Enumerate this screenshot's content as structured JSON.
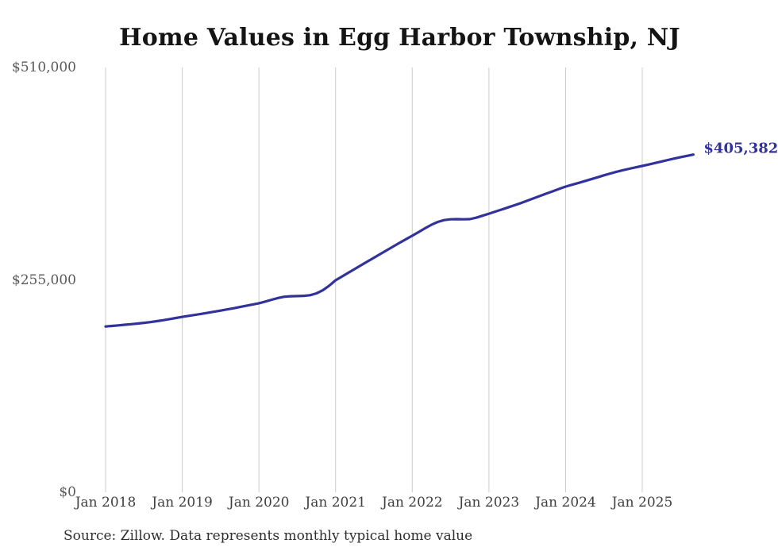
{
  "header": {
    "title": "Home Values in Egg Harbor Township, NJ"
  },
  "footer": {
    "source": "Source: Zillow. Data represents monthly typical home value"
  },
  "colors": {
    "line": "#32329d",
    "grid": "#cccccc",
    "title_text": "#141414",
    "axis_text": "#404040",
    "ytick_text": "#595959",
    "background": "#ffffff"
  },
  "chart_data": {
    "type": "line",
    "title": "Home Values in Egg Harbor Township, NJ",
    "xlabel": "",
    "ylabel": "",
    "unit": "USD",
    "ylim": [
      0,
      510000
    ],
    "grid": "vertical-only",
    "legend_position": "none",
    "end_label": "$405,382",
    "final_value": 405382,
    "y_ticks": [
      {
        "label": "$0",
        "value": 0
      },
      {
        "label": "$255,000",
        "value": 255000
      },
      {
        "label": "$510,000",
        "value": 510000
      }
    ],
    "x_ticks": [
      {
        "label": "Jan 2018",
        "month": 0
      },
      {
        "label": "Jan 2019",
        "month": 12
      },
      {
        "label": "Jan 2020",
        "month": 24
      },
      {
        "label": "Jan 2021",
        "month": 36
      },
      {
        "label": "Jan 2022",
        "month": 48
      },
      {
        "label": "Jan 2023",
        "month": 60
      },
      {
        "label": "Jan 2024",
        "month": 72
      },
      {
        "label": "Jan 2025",
        "month": 84
      }
    ],
    "months": [
      "2018-01",
      "2018-02",
      "2018-03",
      "2018-04",
      "2018-05",
      "2018-06",
      "2018-07",
      "2018-08",
      "2018-09",
      "2018-10",
      "2018-11",
      "2018-12",
      "2019-01",
      "2019-02",
      "2019-03",
      "2019-04",
      "2019-05",
      "2019-06",
      "2019-07",
      "2019-08",
      "2019-09",
      "2019-10",
      "2019-11",
      "2019-12",
      "2020-01",
      "2020-02",
      "2020-03",
      "2020-04",
      "2020-05",
      "2020-06",
      "2020-07",
      "2020-08",
      "2020-09",
      "2020-10",
      "2020-11",
      "2020-12",
      "2021-01",
      "2021-02",
      "2021-03",
      "2021-04",
      "2021-05",
      "2021-06",
      "2021-07",
      "2021-08",
      "2021-09",
      "2021-10",
      "2021-11",
      "2021-12",
      "2022-01",
      "2022-02",
      "2022-03",
      "2022-04",
      "2022-05",
      "2022-06",
      "2022-07",
      "2022-08",
      "2022-09",
      "2022-10",
      "2022-11",
      "2022-12",
      "2023-01",
      "2023-02",
      "2023-03",
      "2023-04",
      "2023-05",
      "2023-06",
      "2023-07",
      "2023-08",
      "2023-09",
      "2023-10",
      "2023-11",
      "2023-12",
      "2024-01",
      "2024-02",
      "2024-03",
      "2024-04",
      "2024-05",
      "2024-06",
      "2024-07",
      "2024-08",
      "2024-09",
      "2024-10",
      "2024-11",
      "2024-12",
      "2025-01",
      "2025-02",
      "2025-03",
      "2025-04",
      "2025-05",
      "2025-06",
      "2025-07",
      "2025-08",
      "2025-09"
    ],
    "values": [
      199000,
      199700,
      200400,
      201100,
      201800,
      202600,
      203400,
      204300,
      205400,
      206600,
      207900,
      209200,
      210600,
      211800,
      213000,
      214200,
      215500,
      216800,
      218100,
      219500,
      220900,
      222400,
      223900,
      225400,
      227000,
      229000,
      231200,
      233300,
      234800,
      235400,
      235600,
      235800,
      236600,
      238800,
      242500,
      248000,
      254500,
      259000,
      263600,
      268100,
      272600,
      277100,
      281600,
      286100,
      290600,
      295000,
      299400,
      303800,
      308000,
      312500,
      317000,
      321200,
      324600,
      326800,
      327700,
      327900,
      327700,
      327900,
      329600,
      332000,
      334500,
      337000,
      339500,
      342000,
      344600,
      347200,
      350000,
      352900,
      355800,
      358600,
      361400,
      364200,
      367000,
      369200,
      371400,
      373600,
      375900,
      378200,
      380500,
      382700,
      384800,
      386700,
      388500,
      390200,
      391800,
      393500,
      395300,
      397100,
      398900,
      400700,
      402400,
      403900,
      405382
    ]
  }
}
